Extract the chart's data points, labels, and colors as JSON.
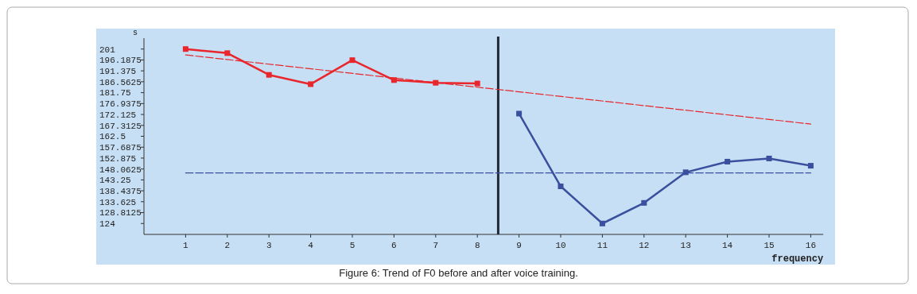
{
  "chart_data": {
    "type": "line",
    "title": "Figure 6: Trend of F0 before and after voice training.",
    "xlabel": "frequency",
    "ylabel": "s",
    "xlim": [
      0,
      16.3
    ],
    "xticks": [
      1,
      2,
      3,
      4,
      5,
      6,
      7,
      8,
      9,
      10,
      11,
      12,
      13,
      14,
      15,
      16
    ],
    "ylim": [
      119.1875,
      205.8125
    ],
    "yticks": [
      201,
      196.1875,
      191.375,
      186.5625,
      181.75,
      176.9375,
      172.125,
      167.3125,
      162.5,
      157.6875,
      152.875,
      148.0625,
      143.25,
      138.4375,
      133.625,
      128.8125,
      124
    ],
    "series": [
      {
        "color": "#e8262b",
        "x": [
          1,
          2,
          3,
          4,
          5,
          6,
          7,
          8
        ],
        "values": [
          201,
          199.2,
          189.6,
          185.5,
          196.1,
          187.3,
          186.1,
          185.8
        ],
        "marker": "square",
        "line_style": "solid"
      },
      {
        "color": "#3a4f9e",
        "x": [
          9,
          10,
          11,
          12,
          13,
          14,
          15,
          16
        ],
        "values": [
          172.5,
          140.4,
          124,
          133.1,
          146.6,
          151.3,
          152.7,
          149.5
        ],
        "marker": "square",
        "line_style": "solid"
      },
      {
        "color": "#e8262b",
        "x": [
          1,
          16
        ],
        "values": [
          198.4,
          167.9
        ],
        "marker": "none",
        "line_style": "dashed"
      },
      {
        "color": "#3a4f9e",
        "x": [
          1,
          16
        ],
        "values": [
          146.3,
          146.3
        ],
        "marker": "none",
        "line_style": "dashed"
      }
    ],
    "ref_lines": [
      {
        "axis": "x",
        "value": 8.5,
        "color": "#1f2a36",
        "line_style": "solid"
      }
    ]
  }
}
